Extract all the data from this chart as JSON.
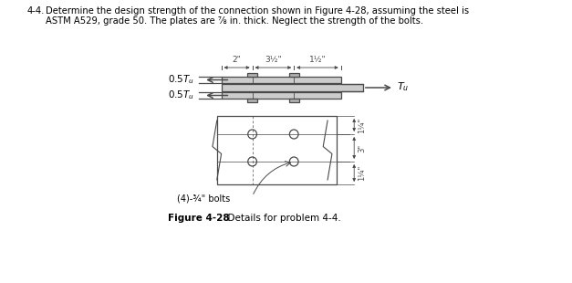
{
  "background_color": "#ffffff",
  "line_color": "#4a4a4a",
  "text_color": "#000000",
  "problem_text_line1": "4-4.  Determine the design strength of the connection shown in Figure 4-28, assuming the steel is",
  "problem_text_line2": "       ASTM A529, grade 50. The plates are ⅞ in. thick. Neglect the strength of the bolts.",
  "fig_caption_bold": "Figure 4-28",
  "fig_caption_normal": "  Details for problem 4-4.",
  "dim_top": [
    "2\"",
    "3½\"",
    "1½\""
  ],
  "dim_right": [
    "1¼\"",
    "3\"",
    "1¼\""
  ],
  "label_05Tu": "0.5$T_u$",
  "label_Tu": "$T_u$",
  "label_bolts": "(4)-¾\" bolts"
}
